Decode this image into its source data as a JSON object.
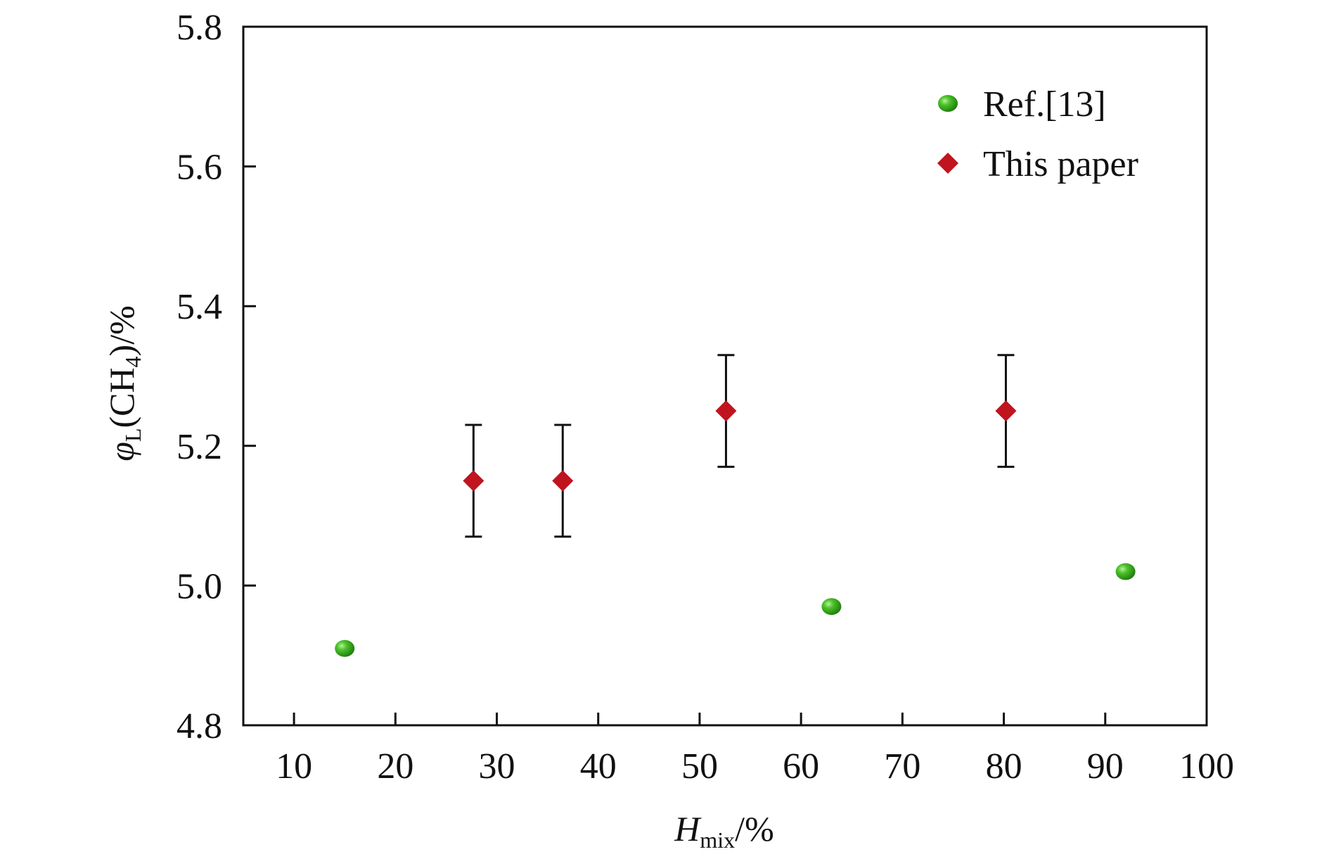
{
  "chart_data": {
    "type": "scatter",
    "title": "",
    "xlabel": {
      "main": "H",
      "sub": "mix",
      "suffix": "/%"
    },
    "ylabel": {
      "symbol": "φ",
      "symbol_sub": "L",
      "open": "(CH",
      "sub": "4",
      "close": ")/%"
    },
    "xlim": [
      5,
      100
    ],
    "ylim": [
      4.8,
      5.8
    ],
    "xticks": [
      10,
      20,
      30,
      40,
      50,
      60,
      70,
      80,
      90,
      100
    ],
    "yticks": [
      4.8,
      5.0,
      5.2,
      5.4,
      5.6,
      5.8
    ],
    "ytick_labels": [
      "4.8",
      "5.0",
      "5.2",
      "5.4",
      "5.6",
      "5.8"
    ],
    "xtick_labels": [
      "10",
      "20",
      "30",
      "40",
      "50",
      "60",
      "70",
      "80",
      "90",
      "100"
    ],
    "grid": false,
    "legend_position": "top-right",
    "series": [
      {
        "name": "Ref.[13]",
        "marker": "circle",
        "color": "#2e9a16",
        "points": [
          {
            "x": 15,
            "y": 4.91
          },
          {
            "x": 63,
            "y": 4.97
          },
          {
            "x": 92,
            "y": 5.02
          }
        ]
      },
      {
        "name": "This paper",
        "marker": "diamond",
        "color": "#c0141e",
        "points": [
          {
            "x": 27.7,
            "y": 5.15,
            "err": 0.08
          },
          {
            "x": 36.5,
            "y": 5.15,
            "err": 0.08
          },
          {
            "x": 52.6,
            "y": 5.25,
            "err": 0.08
          },
          {
            "x": 80.2,
            "y": 5.25,
            "err": 0.08
          }
        ]
      }
    ]
  }
}
